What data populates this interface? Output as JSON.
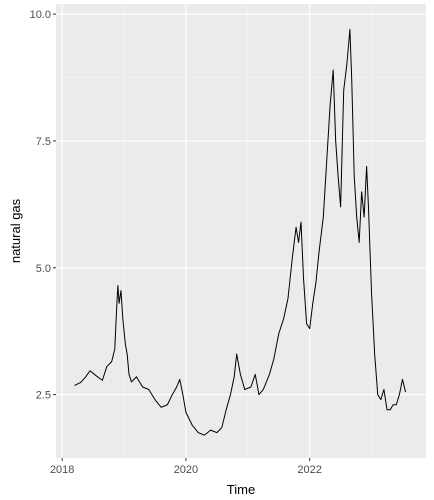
{
  "chart_data": {
    "type": "line",
    "title": "",
    "xlabel": "Time",
    "ylabel": "natural gas",
    "xlim": [
      2017.9,
      2023.88
    ],
    "ylim": [
      1.25,
      10.2
    ],
    "x_ticks": [
      2018,
      2020,
      2022
    ],
    "x_tick_labels": [
      "2018",
      "2020",
      "2022"
    ],
    "y_ticks": [
      2.5,
      5.0,
      7.5,
      10.0
    ],
    "y_tick_labels": [
      "2.5",
      "5.0",
      "7.5",
      "10.0"
    ],
    "grid": true,
    "legend": "none",
    "series": [
      {
        "color": "#000000",
        "points": [
          [
            2018.2,
            2.68
          ],
          [
            2018.3,
            2.74
          ],
          [
            2018.38,
            2.85
          ],
          [
            2018.45,
            2.97
          ],
          [
            2018.55,
            2.87
          ],
          [
            2018.65,
            2.78
          ],
          [
            2018.72,
            3.05
          ],
          [
            2018.8,
            3.15
          ],
          [
            2018.85,
            3.4
          ],
          [
            2018.88,
            4.2
          ],
          [
            2018.9,
            4.65
          ],
          [
            2018.92,
            4.3
          ],
          [
            2018.95,
            4.55
          ],
          [
            2018.98,
            4.0
          ],
          [
            2019.02,
            3.5
          ],
          [
            2019.05,
            3.3
          ],
          [
            2019.08,
            2.9
          ],
          [
            2019.12,
            2.75
          ],
          [
            2019.2,
            2.85
          ],
          [
            2019.3,
            2.65
          ],
          [
            2019.4,
            2.6
          ],
          [
            2019.5,
            2.4
          ],
          [
            2019.6,
            2.25
          ],
          [
            2019.7,
            2.3
          ],
          [
            2019.78,
            2.5
          ],
          [
            2019.85,
            2.65
          ],
          [
            2019.9,
            2.8
          ],
          [
            2019.95,
            2.5
          ],
          [
            2020.0,
            2.15
          ],
          [
            2020.1,
            1.9
          ],
          [
            2020.2,
            1.75
          ],
          [
            2020.3,
            1.7
          ],
          [
            2020.4,
            1.8
          ],
          [
            2020.5,
            1.75
          ],
          [
            2020.58,
            1.85
          ],
          [
            2020.65,
            2.2
          ],
          [
            2020.72,
            2.5
          ],
          [
            2020.78,
            2.85
          ],
          [
            2020.82,
            3.3
          ],
          [
            2020.88,
            2.9
          ],
          [
            2020.95,
            2.6
          ],
          [
            2021.05,
            2.65
          ],
          [
            2021.12,
            2.9
          ],
          [
            2021.18,
            2.5
          ],
          [
            2021.25,
            2.6
          ],
          [
            2021.35,
            2.9
          ],
          [
            2021.42,
            3.2
          ],
          [
            2021.5,
            3.7
          ],
          [
            2021.58,
            4.0
          ],
          [
            2021.65,
            4.4
          ],
          [
            2021.72,
            5.2
          ],
          [
            2021.78,
            5.8
          ],
          [
            2021.82,
            5.5
          ],
          [
            2021.86,
            5.9
          ],
          [
            2021.9,
            4.8
          ],
          [
            2021.95,
            3.9
          ],
          [
            2022.0,
            3.8
          ],
          [
            2022.05,
            4.3
          ],
          [
            2022.1,
            4.7
          ],
          [
            2022.15,
            5.3
          ],
          [
            2022.22,
            6.0
          ],
          [
            2022.28,
            7.2
          ],
          [
            2022.33,
            8.2
          ],
          [
            2022.38,
            8.9
          ],
          [
            2022.42,
            7.5
          ],
          [
            2022.46,
            6.8
          ],
          [
            2022.5,
            6.2
          ],
          [
            2022.55,
            8.5
          ],
          [
            2022.6,
            9.0
          ],
          [
            2022.65,
            9.7
          ],
          [
            2022.68,
            8.7
          ],
          [
            2022.72,
            6.8
          ],
          [
            2022.76,
            6.0
          ],
          [
            2022.8,
            5.5
          ],
          [
            2022.84,
            6.5
          ],
          [
            2022.88,
            6.0
          ],
          [
            2022.92,
            7.0
          ],
          [
            2022.95,
            6.2
          ],
          [
            2023.0,
            4.5
          ],
          [
            2023.05,
            3.3
          ],
          [
            2023.1,
            2.5
          ],
          [
            2023.15,
            2.4
          ],
          [
            2023.2,
            2.6
          ],
          [
            2023.25,
            2.2
          ],
          [
            2023.3,
            2.2
          ],
          [
            2023.35,
            2.3
          ],
          [
            2023.4,
            2.3
          ],
          [
            2023.45,
            2.5
          ],
          [
            2023.5,
            2.8
          ],
          [
            2023.55,
            2.55
          ]
        ]
      }
    ]
  }
}
